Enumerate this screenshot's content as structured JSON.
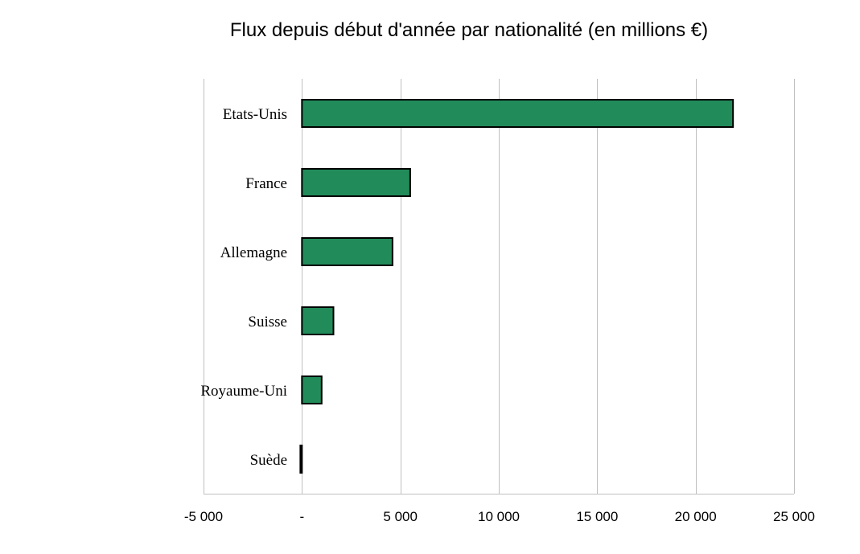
{
  "chart_data": {
    "type": "bar",
    "orientation": "horizontal",
    "title": "Flux depuis début d'année par nationalité (en millions €)",
    "categories": [
      "Etats-Unis",
      "France",
      "Allemagne",
      "Suisse",
      "Royaume-Uni",
      "Suède"
    ],
    "values": [
      21900,
      5500,
      4600,
      1600,
      1000,
      -80
    ],
    "xlim": [
      -5000,
      25000
    ],
    "xticks": [
      -5000,
      0,
      5000,
      10000,
      15000,
      20000,
      25000
    ],
    "xtick_labels": [
      "-5 000",
      "-",
      "5 000",
      "10 000",
      "15 000",
      "20 000",
      "25 000"
    ],
    "xlabel": "",
    "ylabel": "",
    "grid": "vertical",
    "legend": "none",
    "bar_color": "#228B5A",
    "bar_edge_color": "#000000"
  }
}
